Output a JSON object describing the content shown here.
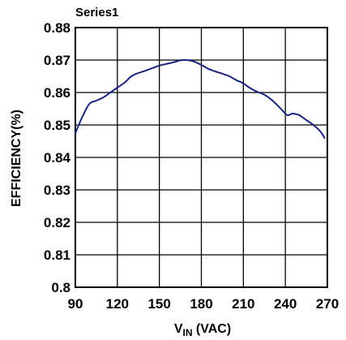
{
  "chart_data": {
    "type": "line",
    "title": "Series1",
    "xlabel": {
      "main": "V",
      "sub": "IN",
      "unit": " (VAC)"
    },
    "ylabel": "EFFICIENCY(%)",
    "xlim": [
      90,
      270
    ],
    "ylim": [
      0.8,
      0.88
    ],
    "xticks": [
      "90",
      "120",
      "150",
      "180",
      "210",
      "240",
      "270"
    ],
    "yticks": [
      "0.88",
      "0.87",
      "0.86",
      "0.85",
      "0.84",
      "0.83",
      "0.82",
      "0.81",
      "0.8"
    ],
    "grid": true,
    "line_color": "#1a237e",
    "series": [
      {
        "x": [
          90,
          95,
          100,
          105,
          110,
          115,
          120,
          125,
          130,
          135,
          140,
          145,
          150,
          155,
          160,
          165,
          170,
          175,
          180,
          185,
          190,
          195,
          200,
          205,
          210,
          215,
          220,
          225,
          230,
          235,
          240,
          242,
          245,
          248,
          250,
          255,
          260,
          265,
          268
        ],
        "y": [
          0.8475,
          0.8525,
          0.8565,
          0.8575,
          0.8585,
          0.86,
          0.8615,
          0.863,
          0.865,
          0.866,
          0.8667,
          0.8675,
          0.8683,
          0.8688,
          0.8693,
          0.8699,
          0.87,
          0.8695,
          0.8685,
          0.8673,
          0.8665,
          0.8658,
          0.865,
          0.8638,
          0.8628,
          0.8613,
          0.8602,
          0.8593,
          0.8578,
          0.8558,
          0.8535,
          0.853,
          0.8535,
          0.8533,
          0.853,
          0.8515,
          0.85,
          0.848,
          0.846
        ]
      }
    ]
  }
}
